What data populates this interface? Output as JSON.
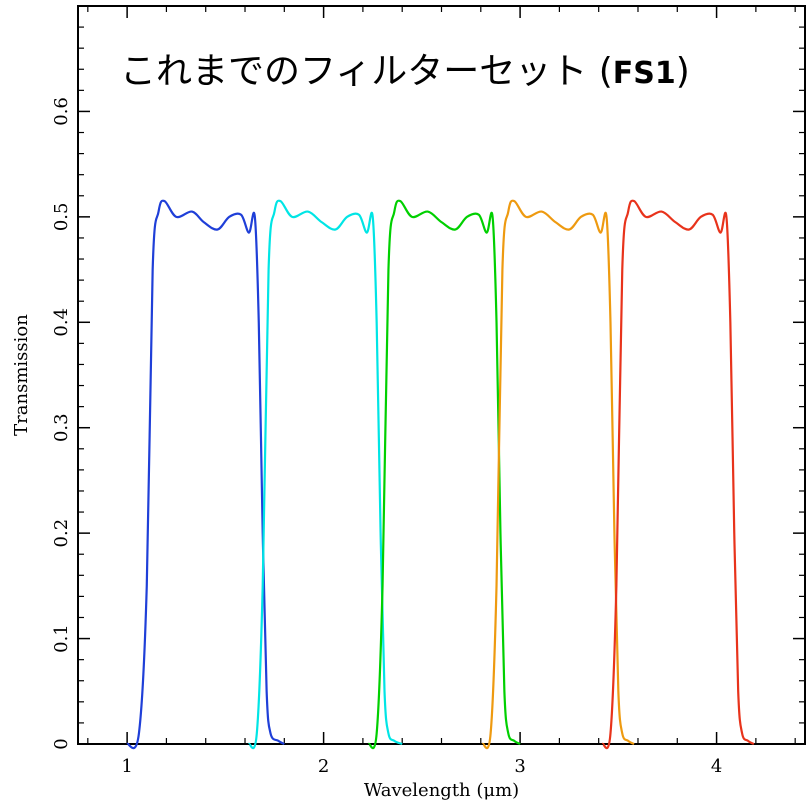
{
  "chart_data": {
    "type": "line",
    "title": "これまでのフィルターセット",
    "title_suffix_open": " (",
    "title_bold": "FS1",
    "title_suffix_close": ")",
    "xlabel": "Wavelength (μm)",
    "ylabel": "Transmission",
    "xlim": [
      0.75,
      4.45
    ],
    "ylim": [
      0,
      0.7
    ],
    "x_ticks": [
      1,
      2,
      3,
      4
    ],
    "x_tick_labels": [
      "1",
      "2",
      "3",
      "4"
    ],
    "y_ticks": [
      0,
      0.1,
      0.2,
      0.3,
      0.4,
      0.5,
      0.6
    ],
    "y_tick_labels": [
      "0",
      "0.1",
      "0.2",
      "0.3",
      "0.4",
      "0.5",
      "0.6"
    ],
    "grid": false,
    "legend": "none",
    "series": [
      {
        "color": "#1f3fd8",
        "x": [
          1.0,
          1.06,
          1.1,
          1.13,
          1.16,
          1.19,
          1.25,
          1.33,
          1.39,
          1.46,
          1.52,
          1.58,
          1.62,
          1.65,
          1.67,
          1.69,
          1.71,
          1.73,
          1.77,
          1.8
        ],
        "y": [
          0.0,
          0.01,
          0.15,
          0.45,
          0.505,
          0.515,
          0.5,
          0.505,
          0.495,
          0.488,
          0.5,
          0.502,
          0.485,
          0.5,
          0.4,
          0.2,
          0.05,
          0.01,
          0.003,
          0.0
        ]
      },
      {
        "color": "#00e5e5",
        "x": [
          1.62,
          1.66,
          1.69,
          1.72,
          1.75,
          1.78,
          1.84,
          1.92,
          1.99,
          2.06,
          2.12,
          2.18,
          2.22,
          2.25,
          2.27,
          2.29,
          2.31,
          2.33,
          2.36,
          2.4
        ],
        "y": [
          0.0,
          0.01,
          0.15,
          0.45,
          0.505,
          0.515,
          0.5,
          0.505,
          0.495,
          0.488,
          0.5,
          0.502,
          0.485,
          0.5,
          0.4,
          0.2,
          0.05,
          0.01,
          0.003,
          0.0
        ]
      },
      {
        "color": "#00d000",
        "x": [
          2.23,
          2.27,
          2.3,
          2.33,
          2.36,
          2.39,
          2.45,
          2.53,
          2.6,
          2.67,
          2.73,
          2.79,
          2.83,
          2.86,
          2.88,
          2.9,
          2.92,
          2.94,
          2.97,
          3.0
        ],
        "y": [
          0.0,
          0.01,
          0.15,
          0.45,
          0.505,
          0.515,
          0.5,
          0.505,
          0.495,
          0.488,
          0.5,
          0.502,
          0.485,
          0.5,
          0.4,
          0.2,
          0.05,
          0.01,
          0.003,
          0.0
        ]
      },
      {
        "color": "#ee9a10",
        "x": [
          2.81,
          2.85,
          2.88,
          2.91,
          2.94,
          2.97,
          3.03,
          3.11,
          3.18,
          3.25,
          3.31,
          3.37,
          3.41,
          3.44,
          3.46,
          3.48,
          3.5,
          3.52,
          3.55,
          3.58
        ],
        "y": [
          0.0,
          0.01,
          0.15,
          0.45,
          0.505,
          0.515,
          0.5,
          0.505,
          0.495,
          0.488,
          0.5,
          0.502,
          0.485,
          0.5,
          0.4,
          0.2,
          0.05,
          0.01,
          0.003,
          0.0
        ]
      },
      {
        "color": "#e8331b",
        "x": [
          3.42,
          3.46,
          3.49,
          3.52,
          3.55,
          3.58,
          3.64,
          3.72,
          3.79,
          3.86,
          3.92,
          3.98,
          4.02,
          4.05,
          4.07,
          4.09,
          4.11,
          4.13,
          4.16,
          4.19
        ],
        "y": [
          0.0,
          0.01,
          0.15,
          0.45,
          0.505,
          0.515,
          0.5,
          0.505,
          0.495,
          0.488,
          0.5,
          0.502,
          0.485,
          0.5,
          0.4,
          0.2,
          0.05,
          0.01,
          0.003,
          0.0
        ]
      }
    ]
  }
}
